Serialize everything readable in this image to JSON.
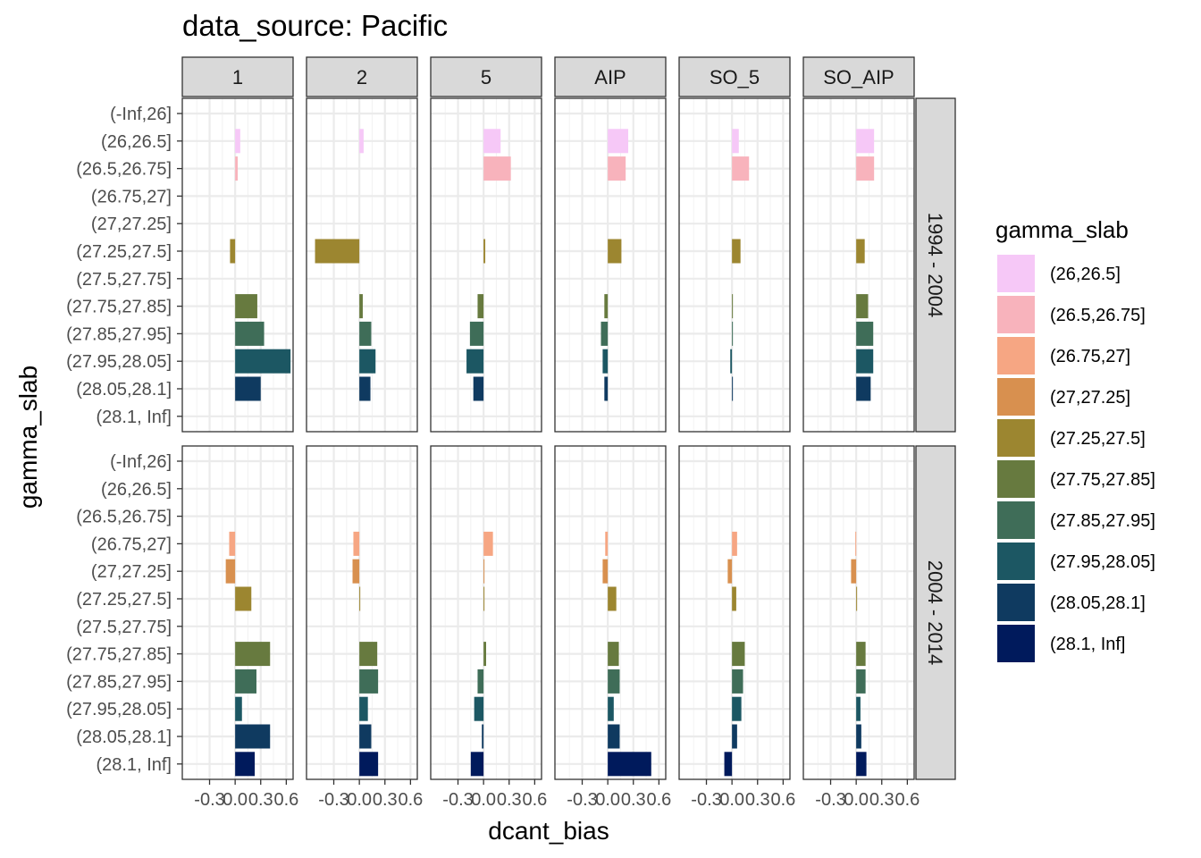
{
  "chart_data": {
    "type": "bar",
    "orientation": "horizontal",
    "title": "data_source: Pacific",
    "xlabel": "dcant_bias",
    "ylabel": "gamma_slab",
    "xlim": [
      -0.62,
      0.68
    ],
    "x_ticks": [
      -0.3,
      0.0,
      0.3,
      0.6
    ],
    "x_tick_labels": [
      "-0.3",
      "0.0",
      "0.3",
      "0.6"
    ],
    "grid": true,
    "categories": [
      "(-Inf,26]",
      "(26,26.5]",
      "(26.5,26.75]",
      "(26.75,27]",
      "(27,27.25]",
      "(27.25,27.5]",
      "(27.5,27.75]",
      "(27.75,27.85]",
      "(27.85,27.95]",
      "(27.95,28.05]",
      "(28.05,28.1]",
      "(28.1, Inf]"
    ],
    "facet_columns": [
      "1",
      "2",
      "5",
      "AIP",
      "SO_5",
      "SO_AIP"
    ],
    "facet_rows": [
      "1994 - 2004",
      "2004 - 2014"
    ],
    "legend": {
      "title": "gamma_slab",
      "position": "right",
      "entries": [
        "(26,26.5]",
        "(26.5,26.75]",
        "(26.75,27]",
        "(27,27.25]",
        "(27.25,27.5]",
        "(27.75,27.85]",
        "(27.85,27.95]",
        "(27.95,28.05]",
        "(28.05,28.1]",
        "(28.1, Inf]"
      ]
    },
    "colors": {
      "(-Inf,26]": "#FDE0FB",
      "(26,26.5]": "#F6C8F7",
      "(26.5,26.75]": "#F8B3BC",
      "(26.75,27]": "#F6A683",
      "(27,27.25]": "#D8904F",
      "(27.25,27.5]": "#9C8630",
      "(27.5,27.75]": "#82803B",
      "(27.75,27.85]": "#677A3F",
      "(27.85,27.95]": "#3F6D58",
      "(27.95,28.05]": "#1C5763",
      "(28.05,28.1]": "#0F3A60",
      "(28.1, Inf]": "#001A5C"
    },
    "panels": [
      {
        "row": "1994 - 2004",
        "col": "1",
        "values": {
          "(26,26.5]": 0.06,
          "(26.5,26.75]": 0.03,
          "(27.25,27.5]": -0.06,
          "(27.75,27.85]": 0.26,
          "(27.85,27.95]": 0.34,
          "(27.95,28.05]": 0.65,
          "(28.05,28.1]": 0.3
        }
      },
      {
        "row": "1994 - 2004",
        "col": "2",
        "values": {
          "(26,26.5]": 0.05,
          "(27.25,27.5]": -0.52,
          "(27.75,27.85]": 0.04,
          "(27.85,27.95]": 0.14,
          "(27.95,28.05]": 0.19,
          "(28.05,28.1]": 0.13
        }
      },
      {
        "row": "1994 - 2004",
        "col": "5",
        "values": {
          "(26,26.5]": 0.2,
          "(26.5,26.75]": 0.32,
          "(27.25,27.5]": 0.02,
          "(27.75,27.85]": -0.07,
          "(27.85,27.95]": -0.16,
          "(27.95,28.05]": -0.2,
          "(28.05,28.1]": -0.12
        }
      },
      {
        "row": "1994 - 2004",
        "col": "AIP",
        "values": {
          "(26,26.5]": 0.24,
          "(26.5,26.75]": 0.21,
          "(27.25,27.5]": 0.16,
          "(27.75,27.85]": -0.04,
          "(27.85,27.95]": -0.08,
          "(27.95,28.05]": -0.06,
          "(28.05,28.1]": -0.04
        }
      },
      {
        "row": "1994 - 2004",
        "col": "SO_5",
        "values": {
          "(26,26.5]": 0.08,
          "(26.5,26.75]": 0.2,
          "(27.25,27.5]": 0.1,
          "(27.75,27.85]": 0.01,
          "(27.85,27.95]": 0.01,
          "(27.95,28.05]": -0.02,
          "(28.05,28.1]": 0.01
        }
      },
      {
        "row": "1994 - 2004",
        "col": "SO_AIP",
        "values": {
          "(26,26.5]": 0.21,
          "(26.5,26.75]": 0.21,
          "(27.25,27.5]": 0.1,
          "(27.75,27.85]": 0.14,
          "(27.85,27.95]": 0.2,
          "(27.95,28.05]": 0.2,
          "(28.05,28.1]": 0.17
        }
      },
      {
        "row": "2004 - 2014",
        "col": "1",
        "values": {
          "(26.75,27]": -0.07,
          "(27,27.25]": -0.11,
          "(27.25,27.5]": 0.19,
          "(27.75,27.85]": 0.41,
          "(27.85,27.95]": 0.25,
          "(27.95,28.05]": 0.08,
          "(28.05,28.1]": 0.41,
          "(28.1, Inf]": 0.23
        }
      },
      {
        "row": "2004 - 2014",
        "col": "2",
        "values": {
          "(26.75,27]": -0.07,
          "(27,27.25]": -0.08,
          "(27.25,27.5]": 0.01,
          "(27.75,27.85]": 0.21,
          "(27.85,27.95]": 0.22,
          "(27.95,28.05]": 0.1,
          "(28.05,28.1]": 0.14,
          "(28.1, Inf]": 0.22
        }
      },
      {
        "row": "2004 - 2014",
        "col": "5",
        "values": {
          "(26.75,27]": 0.11,
          "(27,27.25]": 0.01,
          "(27.25,27.5]": 0.01,
          "(27.75,27.85]": 0.03,
          "(27.85,27.95]": -0.07,
          "(27.95,28.05]": -0.11,
          "(28.05,28.1]": -0.02,
          "(28.1, Inf]": -0.15
        }
      },
      {
        "row": "2004 - 2014",
        "col": "AIP",
        "values": {
          "(26.75,27]": -0.03,
          "(27,27.25]": -0.06,
          "(27.25,27.5]": 0.1,
          "(27.75,27.85]": 0.13,
          "(27.85,27.95]": 0.14,
          "(27.95,28.05]": 0.07,
          "(28.05,28.1]": 0.14,
          "(28.1, Inf]": 0.51
        }
      },
      {
        "row": "2004 - 2014",
        "col": "SO_5",
        "values": {
          "(26.75,27]": 0.06,
          "(27,27.25]": -0.05,
          "(27.25,27.5]": 0.05,
          "(27.75,27.85]": 0.15,
          "(27.85,27.95]": 0.13,
          "(27.95,28.05]": 0.11,
          "(28.05,28.1]": 0.06,
          "(28.1, Inf]": -0.09
        }
      },
      {
        "row": "2004 - 2014",
        "col": "SO_AIP",
        "values": {
          "(26.75,27]": -0.01,
          "(27,27.25]": -0.06,
          "(27.25,27.5]": 0.01,
          "(27.75,27.85]": 0.11,
          "(27.85,27.95]": 0.11,
          "(27.95,28.05]": 0.05,
          "(28.05,28.1]": 0.06,
          "(28.1, Inf]": 0.12
        }
      }
    ]
  }
}
